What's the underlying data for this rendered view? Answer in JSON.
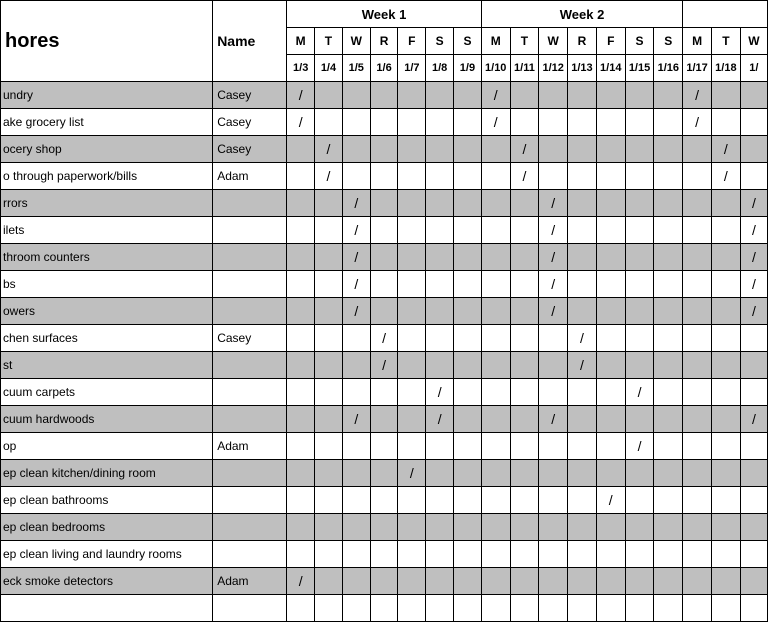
{
  "header": {
    "chores_label": "hores",
    "name_label": "Name",
    "weeks": [
      "Week 1",
      "Week 2",
      ""
    ],
    "days": [
      "M",
      "T",
      "W",
      "R",
      "F",
      "S",
      "S",
      "M",
      "T",
      "W",
      "R",
      "F",
      "S",
      "S",
      "M",
      "T",
      "W"
    ],
    "dates": [
      "1/3",
      "1/4",
      "1/5",
      "1/6",
      "1/7",
      "1/8",
      "1/9",
      "1/10",
      "1/11",
      "1/12",
      "1/13",
      "1/14",
      "1/15",
      "1/16",
      "1/17",
      "1/18",
      "1/"
    ]
  },
  "colors": {
    "shaded": "#bfbfbf",
    "plain": "#ffffff",
    "border": "#000000"
  },
  "rows": [
    {
      "chore": "undry",
      "name": "Casey",
      "shaded": true,
      "marks": [
        0,
        7,
        14
      ]
    },
    {
      "chore": "ake grocery list",
      "name": "Casey",
      "shaded": false,
      "marks": [
        0,
        7,
        14
      ]
    },
    {
      "chore": "ocery shop",
      "name": "Casey",
      "shaded": true,
      "marks": [
        1,
        8,
        15
      ]
    },
    {
      "chore": "o through paperwork/bills",
      "name": "Adam",
      "shaded": false,
      "marks": [
        1,
        8,
        15
      ]
    },
    {
      "chore": "rrors",
      "name": "",
      "shaded": true,
      "marks": [
        2,
        9,
        16
      ]
    },
    {
      "chore": "ilets",
      "name": "",
      "shaded": false,
      "marks": [
        2,
        9,
        16
      ]
    },
    {
      "chore": "throom counters",
      "name": "",
      "shaded": true,
      "marks": [
        2,
        9,
        16
      ]
    },
    {
      "chore": "bs",
      "name": "",
      "shaded": false,
      "marks": [
        2,
        9,
        16
      ]
    },
    {
      "chore": "owers",
      "name": "",
      "shaded": true,
      "marks": [
        2,
        9,
        16
      ]
    },
    {
      "chore": "chen surfaces",
      "name": "Casey",
      "shaded": false,
      "marks": [
        3,
        10
      ]
    },
    {
      "chore": "st",
      "name": "",
      "shaded": true,
      "marks": [
        3,
        10
      ]
    },
    {
      "chore": "cuum carpets",
      "name": "",
      "shaded": false,
      "marks": [
        5,
        12
      ]
    },
    {
      "chore": "cuum hardwoods",
      "name": "",
      "shaded": true,
      "marks": [
        2,
        5,
        9,
        16
      ]
    },
    {
      "chore": "op",
      "name": "Adam",
      "shaded": false,
      "marks": [
        12
      ]
    },
    {
      "chore": "ep clean kitchen/dining room",
      "name": "",
      "shaded": true,
      "marks": [
        4
      ]
    },
    {
      "chore": "ep clean bathrooms",
      "name": "",
      "shaded": false,
      "marks": [
        11
      ]
    },
    {
      "chore": "ep clean bedrooms",
      "name": "",
      "shaded": true,
      "marks": []
    },
    {
      "chore": "ep clean living and laundry rooms",
      "name": "",
      "shaded": false,
      "marks": []
    },
    {
      "chore": "eck smoke detectors",
      "name": "Adam",
      "shaded": true,
      "marks": [
        0
      ]
    },
    {
      "chore": "",
      "name": "",
      "shaded": false,
      "marks": []
    }
  ]
}
